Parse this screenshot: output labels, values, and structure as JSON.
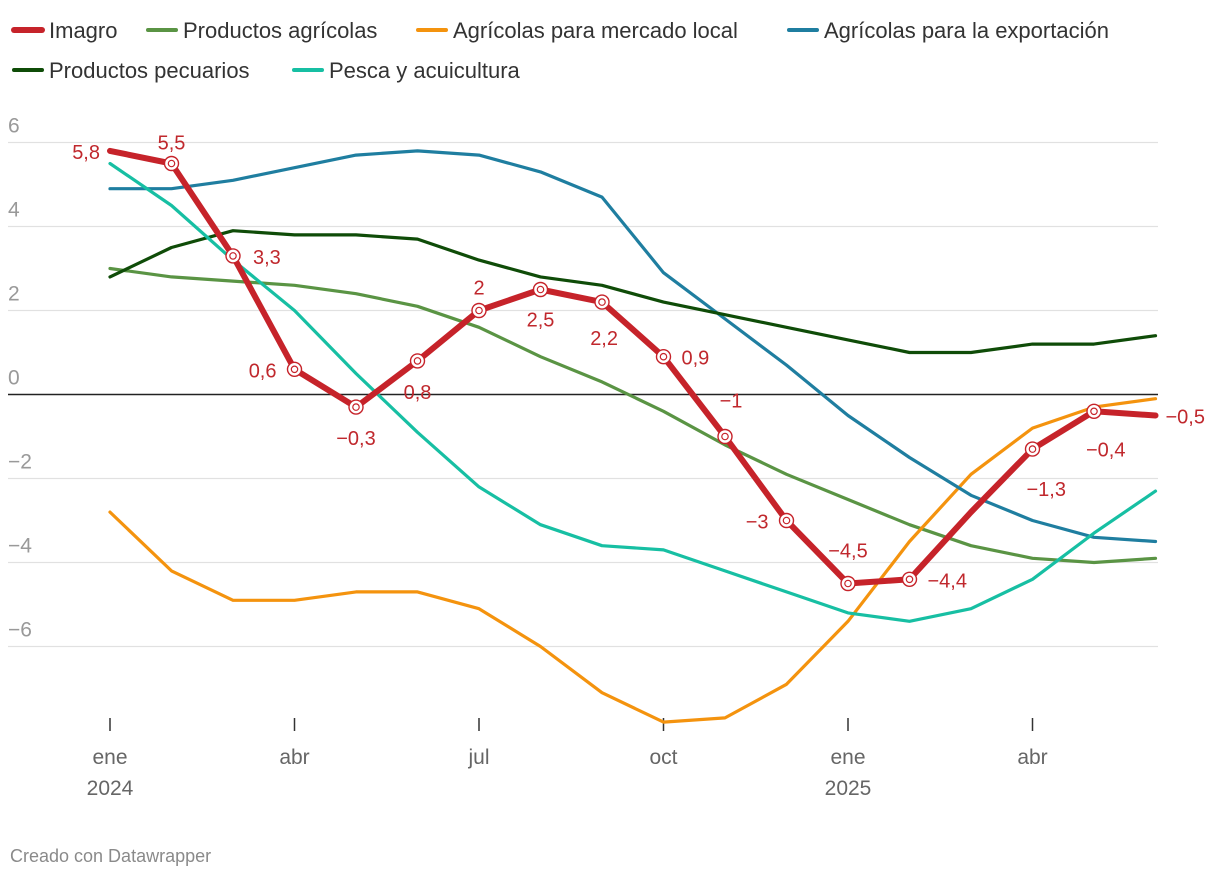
{
  "footer": "Creado con Datawrapper",
  "chart_data": {
    "type": "line",
    "title": "",
    "xlabel": "",
    "ylabel": "",
    "ylim": [
      -8,
      6.5
    ],
    "y_ticks": [
      6,
      4,
      2,
      0,
      -2,
      -4,
      -6
    ],
    "y_tick_labels": [
      "6",
      "4",
      "2",
      "0",
      "−2",
      "−4",
      "−6"
    ],
    "x": [
      "2024-01",
      "2024-02",
      "2024-03",
      "2024-04",
      "2024-05",
      "2024-06",
      "2024-07",
      "2024-08",
      "2024-09",
      "2024-10",
      "2024-11",
      "2024-12",
      "2025-01",
      "2025-02",
      "2025-03",
      "2025-04",
      "2025-05",
      "2025-06"
    ],
    "x_ticks": [
      {
        "index": 0,
        "label": "ene",
        "year": "2024"
      },
      {
        "index": 3,
        "label": "abr",
        "year": ""
      },
      {
        "index": 6,
        "label": "jul",
        "year": ""
      },
      {
        "index": 9,
        "label": "oct",
        "year": ""
      },
      {
        "index": 12,
        "label": "ene",
        "year": "2025"
      },
      {
        "index": 15,
        "label": "abr",
        "year": ""
      }
    ],
    "grid": true,
    "legend_position": "top-left",
    "series": [
      {
        "name": "Productos agrícolas",
        "color": "#5a9444",
        "values": [
          3.0,
          2.8,
          2.7,
          2.6,
          2.4,
          2.1,
          1.6,
          0.9,
          0.3,
          -0.4,
          -1.2,
          -1.9,
          -2.5,
          -3.1,
          -3.6,
          -3.9,
          -4.0,
          -3.9
        ]
      },
      {
        "name": "Agrícolas para mercado local",
        "color": "#f4930e",
        "values": [
          -2.8,
          -4.2,
          -4.9,
          -4.9,
          -4.7,
          -4.7,
          -5.1,
          -6.0,
          -7.1,
          -7.8,
          -7.7,
          -6.9,
          -5.4,
          -3.5,
          -1.9,
          -0.8,
          -0.3,
          -0.1
        ]
      },
      {
        "name": "Agrícolas para la exportación",
        "color": "#1f7ea0",
        "values": [
          4.9,
          4.9,
          5.1,
          5.4,
          5.7,
          5.8,
          5.7,
          5.3,
          4.7,
          2.9,
          1.8,
          0.7,
          -0.5,
          -1.5,
          -2.4,
          -3.0,
          -3.4,
          -3.5
        ]
      },
      {
        "name": "Productos pecuarios",
        "color": "#0f4c08",
        "values": [
          2.8,
          3.5,
          3.9,
          3.8,
          3.8,
          3.7,
          3.2,
          2.8,
          2.6,
          2.2,
          1.9,
          1.6,
          1.3,
          1.0,
          1.0,
          1.2,
          1.2,
          1.4
        ]
      },
      {
        "name": "Pesca y acuicultura",
        "color": "#17bfa3",
        "values": [
          5.5,
          4.5,
          3.2,
          2.0,
          0.5,
          -0.9,
          -2.2,
          -3.1,
          -3.6,
          -3.7,
          -4.2,
          -4.7,
          -5.2,
          -5.4,
          -5.1,
          -4.4,
          -3.3,
          -2.3
        ]
      },
      {
        "name": "Imagro",
        "color": "#c6232a",
        "highlight": true,
        "values": [
          5.8,
          5.5,
          3.3,
          0.6,
          -0.3,
          0.8,
          2.0,
          2.5,
          2.2,
          0.9,
          -1.0,
          -3.0,
          -4.5,
          -4.4,
          -2.8,
          -1.3,
          -0.4,
          -0.5
        ]
      }
    ],
    "legend_order": [
      "Imagro",
      "Productos agrícolas",
      "Agrícolas para mercado local",
      "Agrícolas para la exportación",
      "Productos pecuarios",
      "Pesca y acuicultura"
    ],
    "annotations": [
      {
        "index": 0,
        "text": "5,8"
      },
      {
        "index": 1,
        "text": "5,5"
      },
      {
        "index": 2,
        "text": "3,3"
      },
      {
        "index": 3,
        "text": "0,6"
      },
      {
        "index": 4,
        "text": "−0,3"
      },
      {
        "index": 5,
        "text": "0,8"
      },
      {
        "index": 6,
        "text": "2"
      },
      {
        "index": 7,
        "text": "2,5"
      },
      {
        "index": 8,
        "text": "2,2"
      },
      {
        "index": 9,
        "text": "0,9"
      },
      {
        "index": 10,
        "text": "−1"
      },
      {
        "index": 11,
        "text": "−3"
      },
      {
        "index": 12,
        "text": "−4,5"
      },
      {
        "index": 13,
        "text": "−4,4"
      },
      {
        "index": 15,
        "text": "−1,3"
      },
      {
        "index": 16,
        "text": "−0,4"
      },
      {
        "index": 17,
        "text": "−0,5"
      }
    ]
  }
}
